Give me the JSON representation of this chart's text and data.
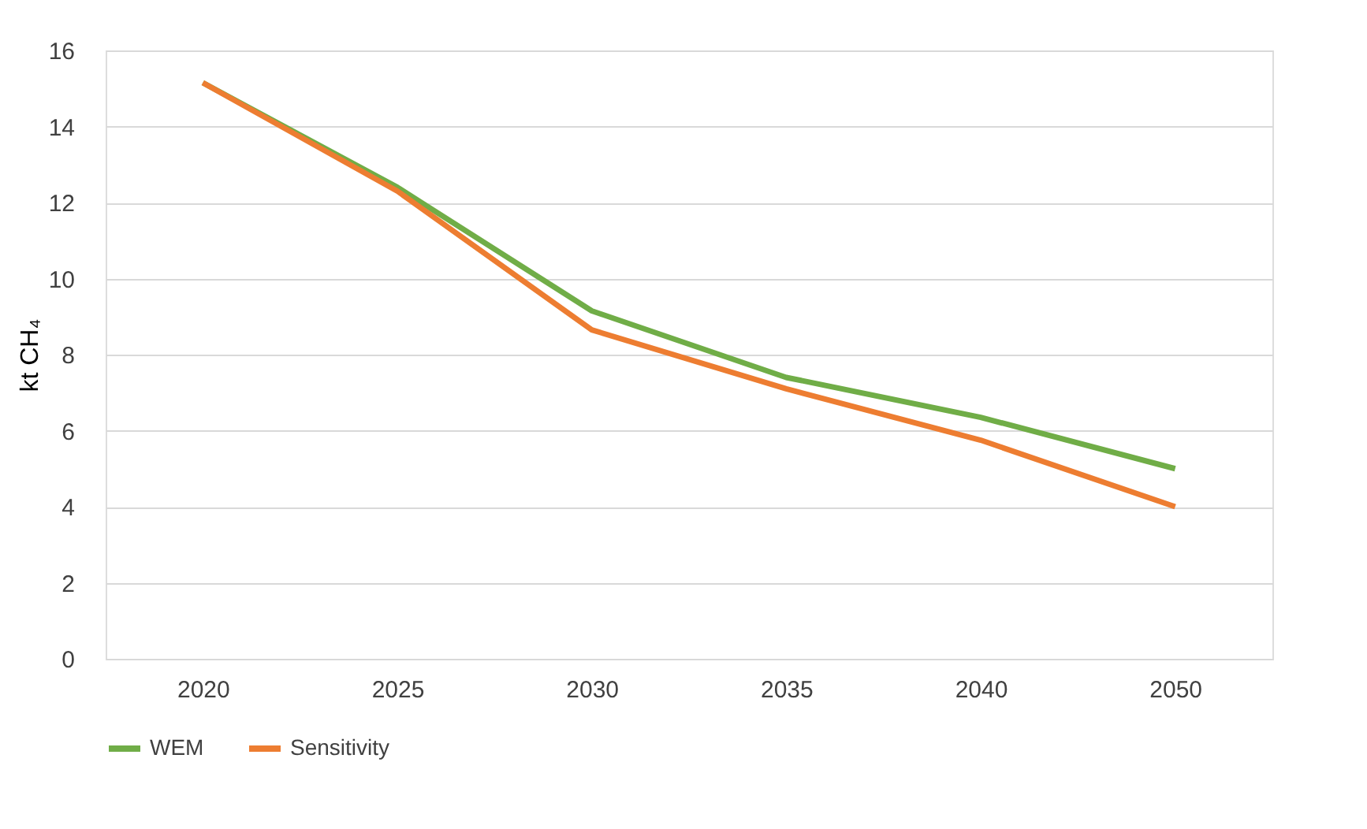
{
  "chart_data": {
    "type": "line",
    "ylabel": "kt CH₄",
    "categories": [
      "2020",
      "2025",
      "2030",
      "2035",
      "2040",
      "2050"
    ],
    "series": [
      {
        "name": "WEM",
        "color": "#70ad47",
        "values": [
          15.15,
          12.4,
          9.15,
          7.4,
          6.35,
          5.0
        ]
      },
      {
        "name": "Sensitivity",
        "color": "#ed7d31",
        "values": [
          15.15,
          12.3,
          8.65,
          7.1,
          5.75,
          4.0
        ]
      }
    ],
    "ylim": [
      0,
      16
    ],
    "yticks": [
      0,
      2,
      4,
      6,
      8,
      10,
      12,
      14,
      16
    ],
    "grid": "y",
    "legend": "bottom",
    "marker": "none",
    "line_style": "solid"
  }
}
